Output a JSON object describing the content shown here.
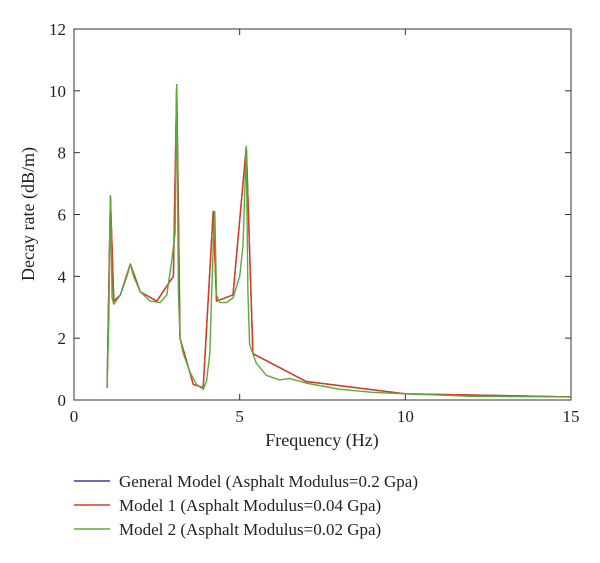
{
  "chart_data": {
    "type": "line",
    "xlabel": "Frequency (Hz)",
    "ylabel": "Decay rate (dB/m)",
    "xlim": [
      0,
      15
    ],
    "ylim": [
      0,
      12
    ],
    "xticks": [
      "0",
      "5",
      "10",
      "15"
    ],
    "yticks": [
      "0",
      "2",
      "4",
      "6",
      "8",
      "10",
      "12"
    ],
    "grid": false,
    "legend_position": "bottom",
    "series": [
      {
        "name": "General Model (Asphalt Modulus=0.2 Gpa)",
        "color": "#3a3a9e",
        "x": [
          1.0,
          1.1,
          1.2,
          1.4,
          1.7,
          2.0,
          2.5,
          3.0,
          3.1,
          3.2,
          3.6,
          3.9,
          4.2,
          4.3,
          4.8,
          5.2,
          5.4,
          7.0,
          10.0,
          15.0
        ],
        "y": [
          0.4,
          6.6,
          3.2,
          3.4,
          4.4,
          3.5,
          3.2,
          4.0,
          10.2,
          2.0,
          0.5,
          0.4,
          6.1,
          3.2,
          3.4,
          8.2,
          1.5,
          0.6,
          0.2,
          0.1
        ]
      },
      {
        "name": "Model 1 (Asphalt Modulus=0.04 Gpa)",
        "color": "#e03a1e",
        "x": [
          1.0,
          1.1,
          1.2,
          1.4,
          1.7,
          2.0,
          2.5,
          3.0,
          3.1,
          3.2,
          3.6,
          3.9,
          4.2,
          4.3,
          4.8,
          5.2,
          5.4,
          7.0,
          10.0,
          15.0
        ],
        "y": [
          0.4,
          6.6,
          3.2,
          3.4,
          4.4,
          3.5,
          3.2,
          4.0,
          10.2,
          2.0,
          0.5,
          0.4,
          6.1,
          3.2,
          3.4,
          8.2,
          1.5,
          0.6,
          0.2,
          0.1
        ]
      },
      {
        "name": "Model 2 (Asphalt Modulus=0.02 Gpa)",
        "color": "#5aab3a",
        "x": [
          1.0,
          1.05,
          1.1,
          1.15,
          1.2,
          1.4,
          1.6,
          1.7,
          1.8,
          2.0,
          2.3,
          2.6,
          2.8,
          2.95,
          3.05,
          3.1,
          3.15,
          3.2,
          3.3,
          3.5,
          3.7,
          3.9,
          4.0,
          4.1,
          4.2,
          4.25,
          4.3,
          4.4,
          4.6,
          4.8,
          5.0,
          5.1,
          5.2,
          5.25,
          5.3,
          5.5,
          5.8,
          6.2,
          6.5,
          7.0,
          8.0,
          9.0,
          10.0,
          12.0,
          15.0
        ],
        "y": [
          0.4,
          2.5,
          6.6,
          3.3,
          3.1,
          3.4,
          4.0,
          4.4,
          4.0,
          3.5,
          3.2,
          3.15,
          3.4,
          4.5,
          5.4,
          10.2,
          3.5,
          2.0,
          1.5,
          0.9,
          0.5,
          0.35,
          0.6,
          1.5,
          5.0,
          6.1,
          3.4,
          3.15,
          3.15,
          3.3,
          4.0,
          5.0,
          8.2,
          3.5,
          1.8,
          1.2,
          0.8,
          0.65,
          0.7,
          0.55,
          0.35,
          0.25,
          0.2,
          0.12,
          0.1
        ]
      }
    ]
  }
}
